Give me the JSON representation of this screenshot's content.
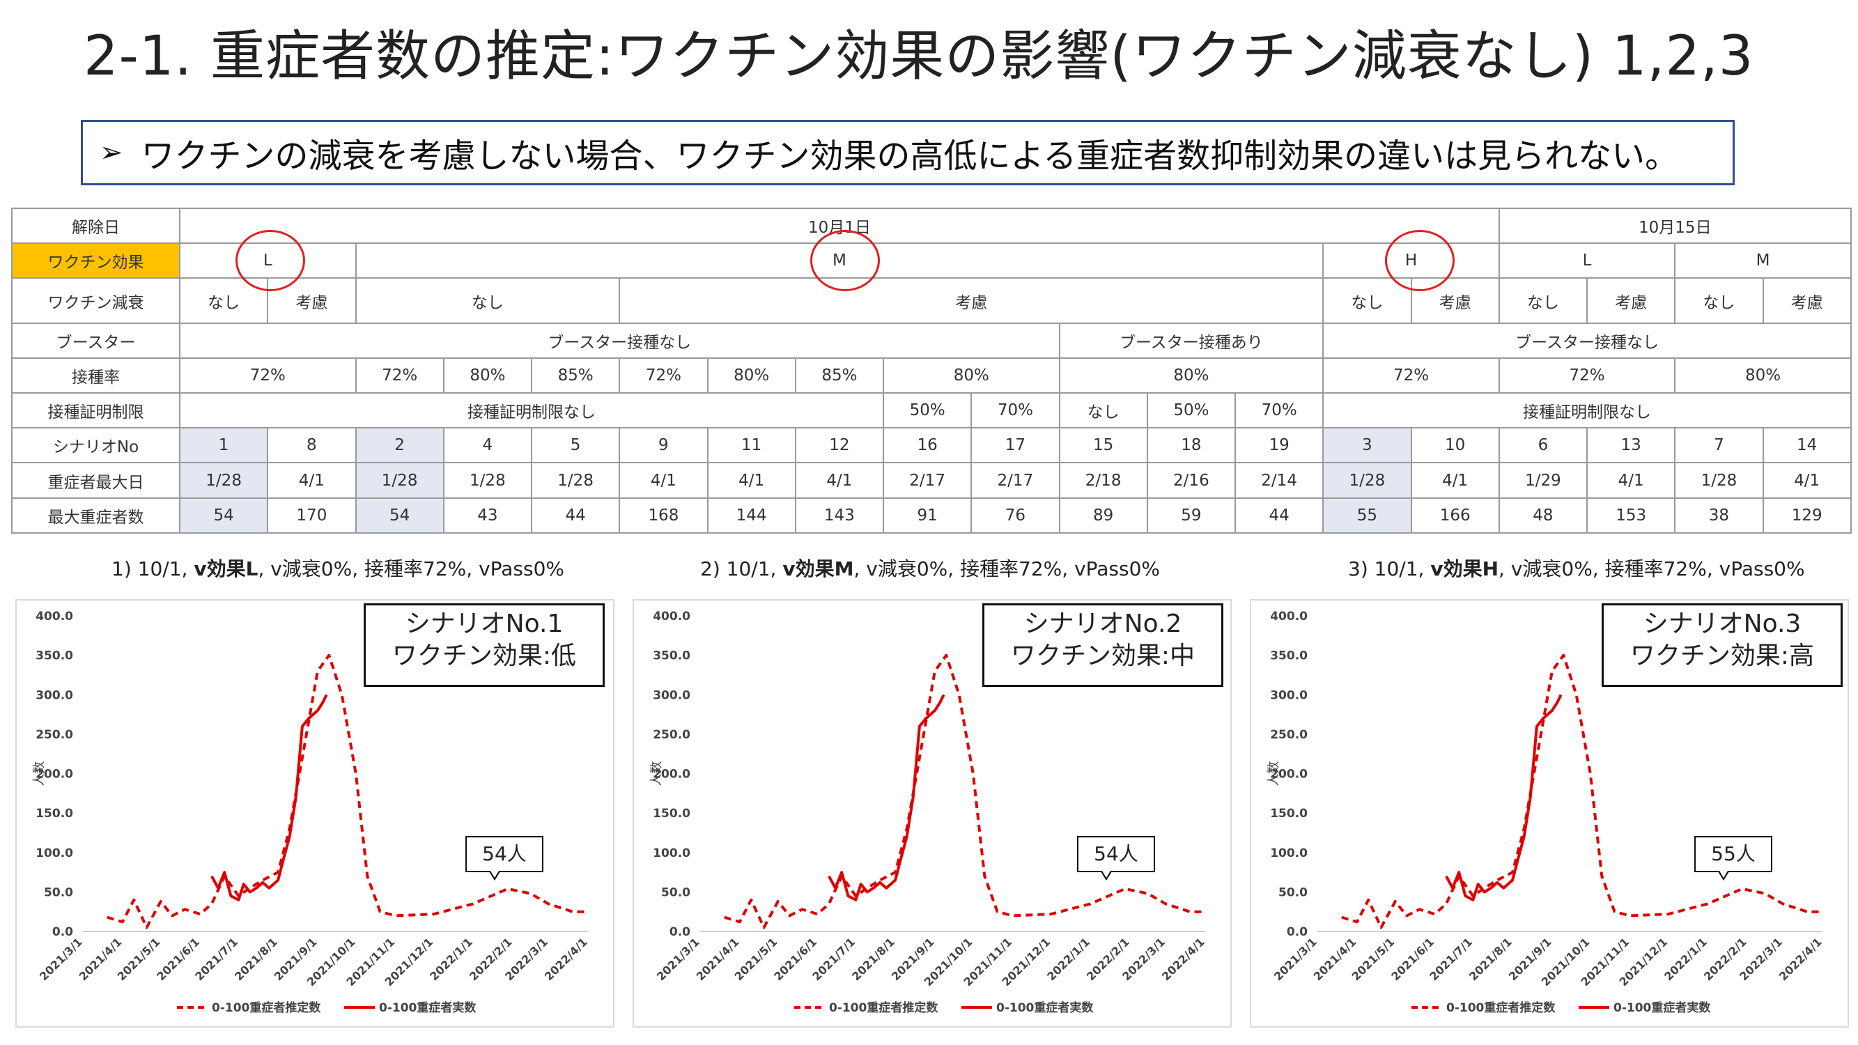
{
  "page_title": "2-1. 重症者数の推定:ワクチン効果の影響(ワクチン減衰なし) 1,2,3",
  "callout": {
    "bullet": "➢",
    "text": "ワクチンの減衰を考慮しない場合、ワクチン効果の高低による重症者数抑制効果の違いは見られない。"
  },
  "table": {
    "row_labels": {
      "release_date": "解除日",
      "vaccine_effect": "ワクチン効果",
      "vaccine_decay": "ワクチン減衰",
      "booster": "ブースター",
      "vacc_rate": "接種率",
      "cert_limit": "接種証明制限",
      "scenario_no": "シナリオNo",
      "peak_date": "重症者最大日",
      "peak_count": "最大重症者数"
    },
    "release": [
      "10月1日",
      "10月15日"
    ],
    "effects": [
      "L",
      "M",
      "H",
      "L",
      "M"
    ],
    "decay": [
      "なし",
      "考慮",
      "なし",
      "考慮",
      "なし",
      "考慮",
      "なし",
      "考慮",
      "なし",
      "考慮"
    ],
    "booster": [
      "ブースター接種なし",
      "ブースター接種あり",
      "ブースター接種なし"
    ],
    "rates": [
      "72%",
      "72%",
      "80%",
      "85%",
      "72%",
      "80%",
      "85%",
      "80%",
      "80%",
      "72%",
      "72%",
      "80%"
    ],
    "cert": [
      "接種証明制限なし",
      "50%",
      "70%",
      "なし",
      "50%",
      "70%",
      "接種証明制限なし"
    ],
    "scenarios": [
      "1",
      "8",
      "2",
      "4",
      "5",
      "9",
      "11",
      "12",
      "16",
      "17",
      "15",
      "18",
      "19",
      "3",
      "10",
      "6",
      "13",
      "7",
      "14"
    ],
    "peak_dates": [
      "1/28",
      "4/1",
      "1/28",
      "1/28",
      "1/28",
      "4/1",
      "4/1",
      "4/1",
      "2/17",
      "2/17",
      "2/18",
      "2/16",
      "2/14",
      "1/28",
      "4/1",
      "1/29",
      "4/1",
      "1/28",
      "4/1"
    ],
    "peak_counts": [
      "54",
      "170",
      "54",
      "43",
      "44",
      "168",
      "144",
      "143",
      "91",
      "76",
      "89",
      "59",
      "44",
      "55",
      "166",
      "48",
      "153",
      "38",
      "129"
    ]
  },
  "charts": [
    {
      "prefix": "1) 10/1, ",
      "bold": "v効果L",
      "suffix": ", v減衰0%, 接種率72%, vPass0%",
      "scenario_line1": "シナリオNo.1",
      "scenario_line2": "ワクチン効果:低",
      "peak_label": "54人"
    },
    {
      "prefix": "2) 10/1, ",
      "bold": "v効果M",
      "suffix": ", v減衰0%, 接種率72%, vPass0%",
      "scenario_line1": "シナリオNo.2",
      "scenario_line2": "ワクチン効果:中",
      "peak_label": "54人"
    },
    {
      "prefix": "3) 10/1, ",
      "bold": "v効果H",
      "suffix": ", v減衰0%, 接種率72%, vPass0%",
      "scenario_line1": "シナリオNo.3",
      "scenario_line2": "ワクチン効果:高",
      "peak_label": "55人"
    }
  ],
  "chart_data": [
    {
      "type": "line",
      "ylabel": "人数",
      "ylim": [
        0,
        400
      ],
      "yticks": [
        "0.0",
        "50.0",
        "100.0",
        "150.0",
        "200.0",
        "250.0",
        "300.0",
        "350.0",
        "400.0"
      ],
      "x_tick_labels": [
        "2021/3/1",
        "2021/4/1",
        "2021/5/1",
        "2021/6/1",
        "2021/7/1",
        "2021/8/1",
        "2021/9/1",
        "2021/10/1",
        "2021/11/1",
        "2021/12/1",
        "2022/1/1",
        "2022/2/1",
        "2022/3/1",
        "2022/4/1"
      ],
      "legend_position": "bottom",
      "series": [
        {
          "name": "0-100重症者推定数",
          "style": "dashed",
          "color": "#e00000",
          "x": [
            "2021/3/20",
            "2021/4/1",
            "2021/4/10",
            "2021/4/20",
            "2021/5/1",
            "2021/5/10",
            "2021/5/20",
            "2021/6/1",
            "2021/6/10",
            "2021/6/20",
            "2021/7/1",
            "2021/7/10",
            "2021/7/20",
            "2021/8/1",
            "2021/8/10",
            "2021/8/20",
            "2021/9/1",
            "2021/9/10",
            "2021/9/20",
            "2021/10/1",
            "2021/10/10",
            "2021/10/20",
            "2021/11/1",
            "2021/12/1",
            "2022/1/1",
            "2022/1/28",
            "2022/2/15",
            "2022/3/1",
            "2022/3/20",
            "2022/4/1"
          ],
          "y": [
            18,
            12,
            40,
            5,
            38,
            20,
            28,
            22,
            35,
            70,
            45,
            55,
            65,
            75,
            130,
            220,
            330,
            350,
            300,
            200,
            70,
            25,
            20,
            22,
            35,
            54,
            48,
            35,
            25,
            25
          ]
        },
        {
          "name": "0-100重症者実数",
          "style": "solid",
          "color": "#e00000",
          "x": [
            "2021/6/10",
            "2021/6/15",
            "2021/6/20",
            "2021/6/25",
            "2021/7/1",
            "2021/7/5",
            "2021/7/10",
            "2021/7/15",
            "2021/7/20",
            "2021/7/25",
            "2021/8/1",
            "2021/8/5",
            "2021/8/10",
            "2021/8/15",
            "2021/8/20",
            "2021/8/25",
            "2021/9/1",
            "2021/9/5",
            "2021/9/8"
          ],
          "y": [
            70,
            55,
            75,
            45,
            40,
            60,
            50,
            55,
            62,
            55,
            65,
            90,
            120,
            170,
            260,
            270,
            280,
            290,
            300
          ]
        }
      ]
    }
  ]
}
